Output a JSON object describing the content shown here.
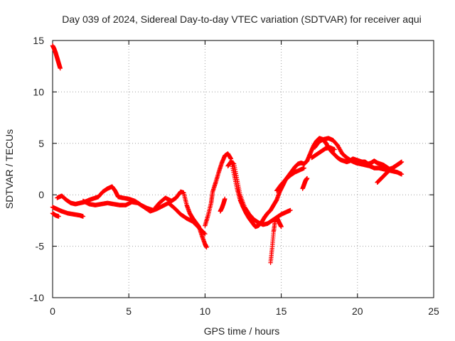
{
  "chart_data": {
    "type": "scatter",
    "title": "Day 039 of 2024, Sidereal Day-to-day VTEC variation (SDTVAR) for receiver aqui",
    "xlabel": "GPS time / hours",
    "ylabel": "SDTVAR / TECUs",
    "xlim": [
      0,
      25
    ],
    "ylim": [
      -10,
      15
    ],
    "xticks": [
      0,
      5,
      10,
      15,
      20,
      25
    ],
    "yticks": [
      -10,
      -5,
      0,
      5,
      10,
      15
    ],
    "xtick_labels": [
      "0",
      "5",
      "10",
      "15",
      "20",
      "25"
    ],
    "ytick_labels": [
      "-10",
      "-5",
      "0",
      "5",
      "10",
      "15"
    ],
    "grid": true,
    "marker": "+",
    "series": [
      {
        "name": "SDTVAR",
        "color": "#ff0000",
        "segments": [
          {
            "x": [
              0.0,
              0.1,
              0.2,
              0.3,
              0.4,
              0.5
            ],
            "y": [
              14.5,
              14.2,
              13.8,
              13.3,
              12.8,
              12.3
            ]
          },
          {
            "x": [
              0.0,
              0.3,
              0.6,
              1.0,
              1.4,
              1.8,
              2.0
            ],
            "y": [
              -1.2,
              -1.4,
              -1.6,
              -1.8,
              -1.9,
              -2.0,
              -2.1
            ]
          },
          {
            "x": [
              0.0,
              0.2,
              0.4
            ],
            "y": [
              -1.8,
              -2.0,
              -2.1
            ]
          },
          {
            "x": [
              0.3,
              0.6,
              0.9,
              1.2,
              1.5,
              1.8,
              2.1,
              2.4,
              2.8,
              3.0,
              3.3,
              3.6,
              3.9,
              4.1,
              4.3,
              4.6,
              5.0,
              5.4,
              5.8,
              6.2,
              6.6,
              7.0,
              7.4,
              7.8,
              8.1,
              8.4,
              8.6,
              8.8,
              9.0,
              9.2,
              9.4,
              9.6,
              9.8,
              10.0,
              10.1
            ],
            "y": [
              -0.3,
              -0.1,
              -0.5,
              -0.8,
              -0.9,
              -0.8,
              -0.7,
              -0.5,
              -0.3,
              -0.2,
              0.3,
              0.6,
              0.8,
              0.4,
              -0.2,
              -0.3,
              -0.4,
              -0.6,
              -1.0,
              -1.3,
              -1.5,
              -0.8,
              -0.3,
              -0.6,
              -0.3,
              0.3,
              0.2,
              -1.0,
              -1.8,
              -2.3,
              -2.7,
              -3.1,
              -4.0,
              -4.8,
              -5.1
            ]
          },
          {
            "x": [
              2.0,
              2.4,
              2.8,
              3.2,
              3.6,
              4.0,
              4.4,
              4.8,
              5.2,
              5.6,
              6.0,
              6.4,
              6.8,
              7.2,
              7.6,
              8.0,
              8.4,
              8.8,
              9.2,
              9.6,
              10.0
            ],
            "y": [
              -0.6,
              -0.9,
              -1.0,
              -0.9,
              -0.8,
              -0.9,
              -1.0,
              -1.0,
              -0.7,
              -0.8,
              -1.2,
              -1.6,
              -1.4,
              -1.1,
              -0.8,
              -1.3,
              -1.9,
              -2.3,
              -2.6,
              -3.2,
              -3.8
            ]
          },
          {
            "x": [
              10.0,
              10.2,
              10.4,
              10.5,
              10.7,
              10.9,
              11.1,
              11.3,
              11.5,
              11.7,
              11.9,
              12.1,
              12.3,
              12.5,
              12.7,
              12.9,
              13.1,
              13.3,
              13.5,
              13.7,
              13.9,
              14.1,
              14.3,
              14.5,
              14.7,
              14.9,
              15.1,
              15.3,
              15.5,
              15.7,
              15.9,
              16.1,
              16.3,
              16.5,
              16.7,
              16.9,
              17.1,
              17.3,
              17.5,
              17.7,
              17.9,
              18.1,
              18.3,
              18.5,
              18.7,
              18.9,
              19.1,
              19.3,
              19.5,
              19.7,
              19.9,
              20.1,
              20.3,
              20.5,
              20.7,
              20.9,
              21.1,
              21.3,
              21.5,
              21.7,
              21.9,
              22.1,
              22.3,
              22.5,
              22.7,
              22.9
            ],
            "y": [
              -3.0,
              -2.0,
              -0.8,
              0.3,
              1.2,
              2.2,
              3.1,
              3.8,
              4.0,
              3.5,
              2.0,
              0.6,
              -0.5,
              -1.2,
              -1.8,
              -2.3,
              -2.7,
              -3.1,
              -3.0,
              -2.7,
              -2.2,
              -1.8,
              -1.5,
              -1.0,
              -0.5,
              0.3,
              0.9,
              1.5,
              1.9,
              2.3,
              2.7,
              3.0,
              3.1,
              3.0,
              3.3,
              4.0,
              4.7,
              5.2,
              5.5,
              5.4,
              5.1,
              4.6,
              4.2,
              3.9,
              3.6,
              3.4,
              3.3,
              3.2,
              3.3,
              3.5,
              3.4,
              3.3,
              3.2,
              3.2,
              3.0,
              3.1,
              3.3,
              3.1,
              3.0,
              2.9,
              2.7,
              2.5,
              2.6,
              2.8,
              3.0,
              3.2
            ]
          },
          {
            "x": [
              11.5,
              11.7,
              11.9,
              12.1,
              12.3,
              12.6,
              12.9,
              13.2,
              13.5,
              13.8,
              14.1,
              14.4,
              14.7,
              15.0,
              15.3,
              15.6
            ],
            "y": [
              2.8,
              3.2,
              3.0,
              1.5,
              0.0,
              -1.2,
              -1.9,
              -2.4,
              -2.7,
              -2.9,
              -2.8,
              -2.5,
              -2.2,
              -1.9,
              -1.7,
              -1.5
            ]
          },
          {
            "x": [
              14.3,
              14.4,
              14.5,
              14.6,
              14.7,
              14.8,
              14.9,
              15.0
            ],
            "y": [
              -6.6,
              -5.2,
              -3.6,
              -2.5,
              -2.2,
              -2.5,
              -2.8,
              -3.1
            ]
          },
          {
            "x": [
              11.0,
              11.1,
              11.2,
              11.3
            ],
            "y": [
              -1.6,
              -1.3,
              -0.9,
              -0.4
            ]
          },
          {
            "x": [
              14.7,
              15.0,
              15.3,
              15.6,
              15.9,
              16.2,
              16.5
            ],
            "y": [
              0.4,
              1.0,
              1.5,
              1.9,
              2.2,
              2.4,
              2.6
            ]
          },
          {
            "x": [
              16.4,
              16.5,
              16.6,
              16.7
            ],
            "y": [
              0.6,
              1.0,
              1.4,
              1.6
            ]
          },
          {
            "x": [
              17.2,
              17.5,
              17.8,
              18.1,
              18.4,
              18.7,
              19.0,
              19.3,
              19.6,
              19.9,
              20.2,
              20.5,
              20.8,
              21.1,
              21.4,
              21.7,
              22.0,
              22.3,
              22.6,
              22.9
            ],
            "y": [
              4.6,
              5.2,
              5.4,
              5.5,
              5.3,
              4.8,
              4.0,
              3.6,
              3.3,
              3.1,
              3.0,
              2.9,
              2.8,
              2.6,
              2.6,
              2.5,
              2.4,
              2.3,
              2.2,
              2.0
            ]
          },
          {
            "x": [
              17.0,
              17.3,
              17.6,
              17.9,
              18.2,
              18.5
            ],
            "y": [
              3.6,
              3.9,
              4.2,
              4.5,
              4.6,
              4.4
            ]
          },
          {
            "x": [
              21.3,
              21.5,
              21.7,
              21.9,
              22.1
            ],
            "y": [
              1.2,
              1.5,
              1.8,
              2.1,
              2.4
            ]
          }
        ]
      }
    ]
  }
}
